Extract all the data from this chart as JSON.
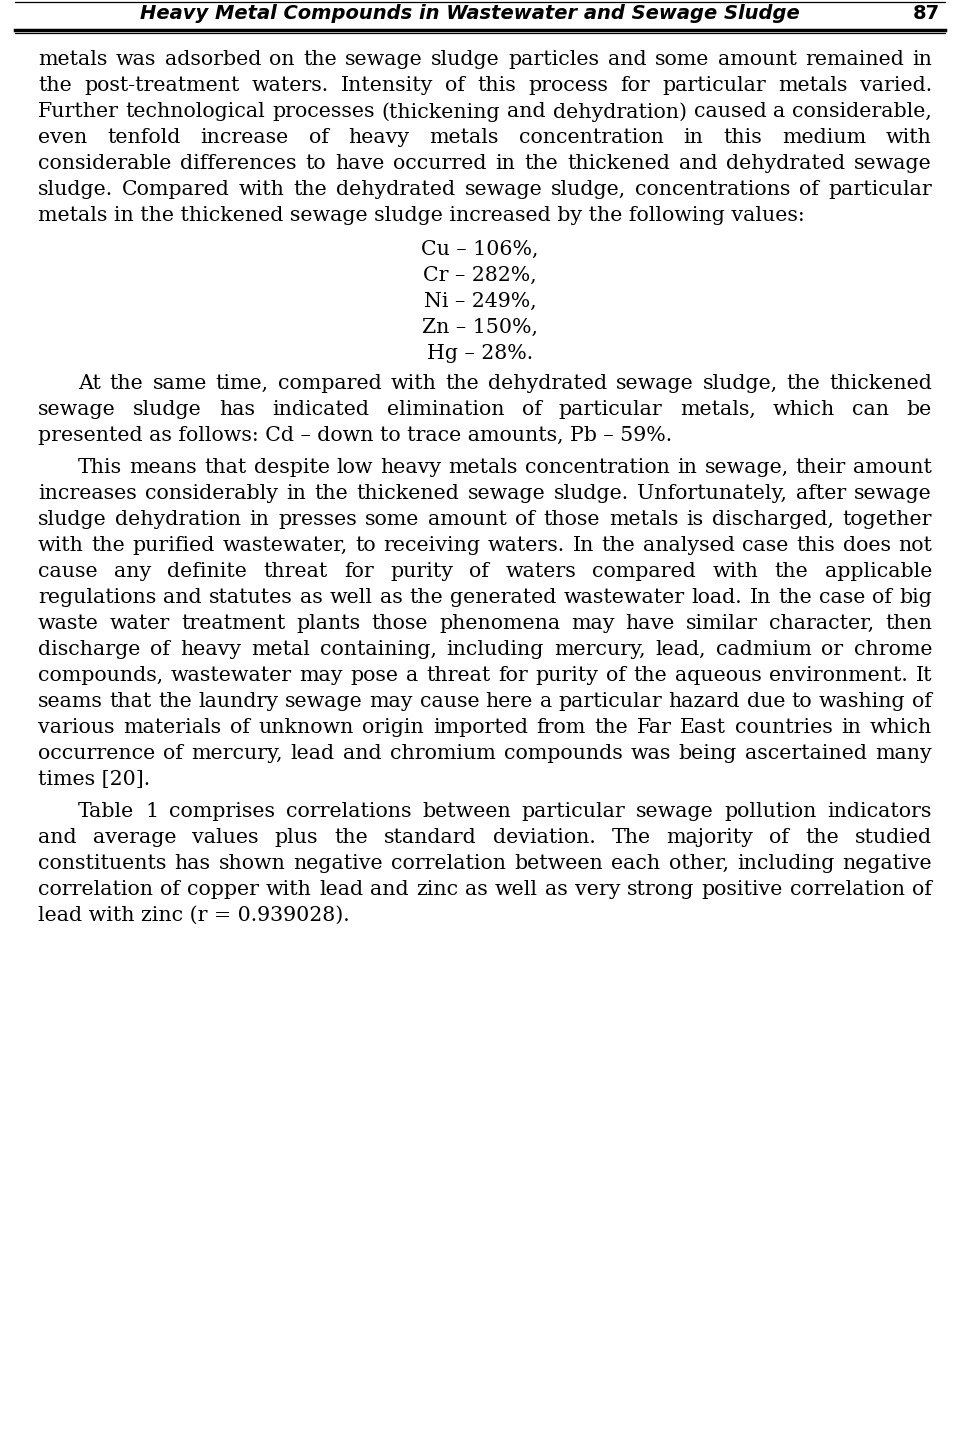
{
  "header_title": "Heavy Metal Compounds in Wastewater and Sewage Sludge",
  "header_page": "87",
  "background_color": "#ffffff",
  "text_color": "#000000",
  "paragraphs": [
    {
      "type": "body",
      "indent": false,
      "text": "metals was adsorbed on the sewage sludge particles and some amount remained in the post-treatment waters. Intensity of this process for particular metals varied. Further technological processes (thickening and dehydration) caused a considerable, even tenfold increase of heavy metals concentration in this medium with considerable differences to have occurred in the thickened and dehydrated sewage sludge. Compared with the dehydrated sewage sludge, concentrations of particular metals in the thickened sewage sludge increased by the following values:"
    },
    {
      "type": "list",
      "items": [
        "Cu – 106%,",
        "Cr – 282%,",
        "Ni – 249%,",
        "Zn – 150%,",
        "Hg – 28%."
      ]
    },
    {
      "type": "body",
      "indent": true,
      "text": "At the same time, compared with the dehydrated sewage sludge, the thickened sewage sludge has indicated elimination of particular metals, which can be presented as follows: Cd – down to trace amounts, Pb – 59%."
    },
    {
      "type": "body",
      "indent": true,
      "text": "This means that despite low heavy metals concentration in sewage, their amount increases considerably in the thickened sewage sludge. Unfortunately, after sewage sludge dehydration in presses some amount of those metals is discharged, together with the purified wastewater, to receiving waters. In the analysed case this does not cause any definite threat for purity of waters compared with the applicable regulations and statutes as well as the generated wastewater load. In the case of big waste water treatment plants those phenomena may have similar character, then discharge of heavy metal containing, including mercury, lead, cadmium or chrome compounds, wastewater may pose a threat for purity of the aqueous environment. It seams that the laundry sewage may cause here a particular hazard due to washing of various materials of unknown origin imported from the Far East countries in which occurrence of mercury, lead and chromium compounds was being ascertained many times [20]."
    },
    {
      "type": "body",
      "indent": true,
      "text": "Table 1 comprises correlations between particular sewage pollution indicators and average values plus the standard deviation. The majority of the studied constituents has shown negative correlation between each other, including negative correlation of copper with lead and zinc as well as very strong positive correlation of lead with zinc (r = 0.939028)."
    }
  ]
}
